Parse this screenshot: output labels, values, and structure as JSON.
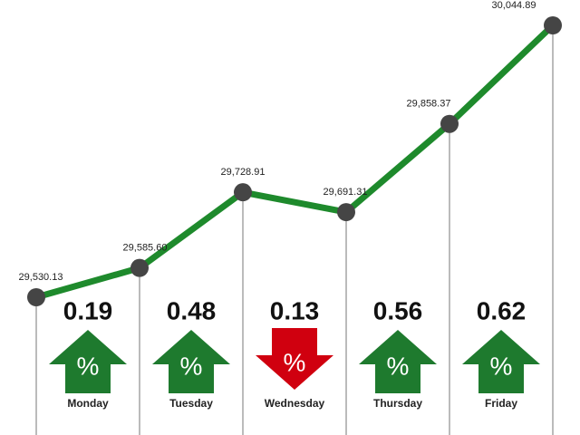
{
  "chart_data": {
    "type": "line",
    "values": [
      29530.13,
      29585.6,
      29728.91,
      29691.31,
      29858.37,
      30044.89
    ],
    "value_labels": [
      "29,530.13",
      "29,585.60",
      "29,728.91",
      "29,691.31",
      "29,858.37",
      "30,044.89"
    ],
    "color": "#1e8a2c",
    "changes": {
      "days": [
        "Monday",
        "Tuesday",
        "Wednesday",
        "Thursday",
        "Friday"
      ],
      "values": [
        0.19,
        0.48,
        0.13,
        0.56,
        0.62
      ],
      "directions": [
        "up",
        "up",
        "down",
        "up",
        "up"
      ],
      "colors": [
        "#1e7a2e",
        "#1e7a2e",
        "#d0000f",
        "#1e7a2e",
        "#1e7a2e"
      ],
      "symbol": "%"
    }
  }
}
